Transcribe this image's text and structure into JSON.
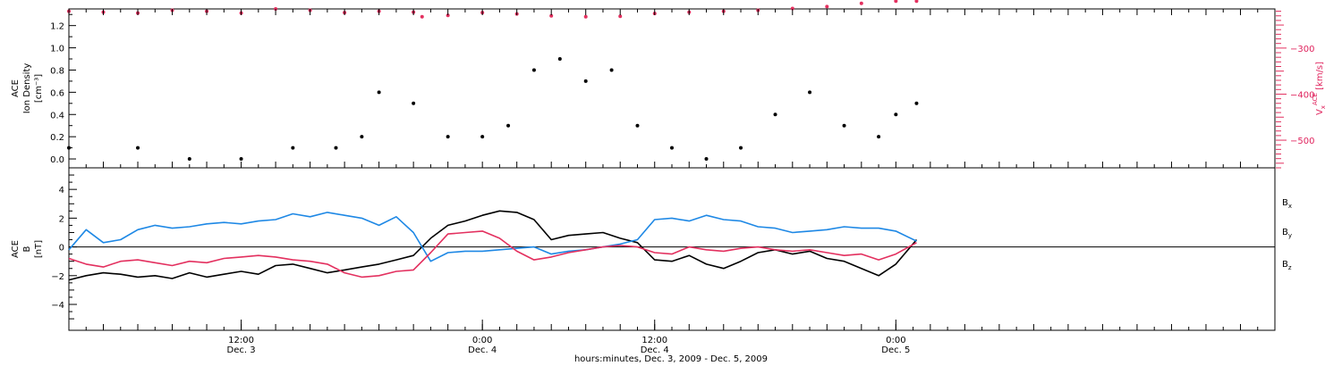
{
  "colors": {
    "black": "#000000",
    "pink": "#e3305f",
    "blue": "#1e88e5"
  },
  "x_axis": {
    "title": "hours:minutes, Dec.  3, 2009 - Dec.  5, 2009",
    "range_hours": [
      0,
      70
    ],
    "ticks": [
      {
        "hour": 10,
        "time": "12:00",
        "date": "Dec. 3"
      },
      {
        "hour": 24,
        "time": "0:00",
        "date": "Dec. 4"
      },
      {
        "hour": 34,
        "time": "12:00",
        "date": "Dec. 4"
      },
      {
        "hour": 48,
        "time": "0:00",
        "date": "Dec. 5"
      }
    ]
  },
  "chart_data": [
    {
      "type": "scatter",
      "panel": "top",
      "left_axis": {
        "label_lines": [
          "ACE",
          "Ion Density",
          "[cm⁻³]"
        ],
        "ylim": [
          -0.08,
          1.35
        ],
        "tick_labels": [
          "0.0",
          "0.2",
          "0.4",
          "0.6",
          "0.8",
          "1.0",
          "1.2"
        ]
      },
      "right_axis": {
        "label_parts": [
          "V",
          "x",
          "ACE",
          " [km/s]"
        ],
        "ylim": [
          -560,
          -215
        ],
        "tick_values": [
          -300,
          -400,
          -500
        ],
        "tick_labels": [
          "−300",
          "−400",
          "−500"
        ]
      },
      "series": [
        {
          "axis": "left",
          "color": "black",
          "x": [
            0,
            4,
            7,
            10,
            13,
            15.5,
            17,
            18,
            20,
            22,
            24,
            25.5,
            27,
            28.5,
            30,
            31.5,
            33,
            35,
            37,
            39,
            41,
            43,
            45,
            47,
            48,
            49.2
          ],
          "y": [
            0.1,
            0.1,
            0.0,
            0.0,
            0.1,
            0.1,
            0.2,
            0.6,
            0.5,
            0.2,
            0.2,
            0.3,
            0.8,
            0.9,
            0.7,
            0.8,
            0.3,
            0.1,
            0.0,
            0.1,
            0.4,
            0.6,
            0.3,
            0.2,
            0.4,
            0.5
          ]
        },
        {
          "axis": "right",
          "color": "pink",
          "x": [
            0,
            2,
            4,
            6,
            8,
            10,
            12,
            14,
            16,
            18,
            20,
            20.5,
            22,
            24,
            26,
            28,
            30,
            32,
            34,
            36,
            38,
            40,
            42,
            44,
            46,
            48,
            49.2
          ],
          "y": [
            -220,
            -222,
            -224,
            -218,
            -220,
            -224,
            -215,
            -218,
            -223,
            -220,
            -222,
            -232,
            -229,
            -223,
            -226,
            -230,
            -232,
            -231,
            -225,
            -222,
            -220,
            -218,
            -214,
            -210,
            -203,
            -198,
            -198
          ]
        }
      ]
    },
    {
      "type": "line",
      "panel": "bottom",
      "left_axis": {
        "label_lines": [
          "ACE",
          "B",
          "[nT]"
        ],
        "ylim": [
          -5.8,
          5.5
        ],
        "tick_values": [
          4,
          2,
          0,
          -2,
          -4
        ],
        "tick_labels": [
          "4",
          "2",
          "0",
          "−2",
          "−4"
        ]
      },
      "legend_position": "right",
      "series": [
        {
          "name_parts": [
            "B",
            "x"
          ],
          "color": "black",
          "x": [
            0,
            1,
            2,
            3,
            4,
            5,
            6,
            7,
            8,
            9,
            10,
            11,
            12,
            13,
            14,
            15,
            16,
            17,
            18,
            19,
            20,
            21,
            22,
            23,
            24,
            25,
            26,
            27,
            28,
            29,
            30,
            31,
            32,
            33,
            34,
            35,
            36,
            37,
            38,
            39,
            40,
            41,
            42,
            43,
            44,
            45,
            46,
            47,
            48,
            49.2
          ],
          "y": [
            -2.3,
            -2.0,
            -1.8,
            -1.9,
            -2.1,
            -2.0,
            -2.2,
            -1.8,
            -2.1,
            -1.9,
            -1.7,
            -1.9,
            -1.3,
            -1.2,
            -1.5,
            -1.8,
            -1.6,
            -1.4,
            -1.2,
            -0.9,
            -0.6,
            0.6,
            1.5,
            1.8,
            2.2,
            2.5,
            2.4,
            1.9,
            0.5,
            0.8,
            0.9,
            1.0,
            0.6,
            0.3,
            -0.9,
            -1.0,
            -0.6,
            -1.2,
            -1.5,
            -1.0,
            -0.4,
            -0.2,
            -0.5,
            -0.3,
            -0.8,
            -1.0,
            -1.5,
            -2.0,
            -1.2,
            0.5
          ]
        },
        {
          "name_parts": [
            "B",
            "y"
          ],
          "color": "blue",
          "x": [
            0,
            1,
            2,
            3,
            4,
            5,
            6,
            7,
            8,
            9,
            10,
            11,
            12,
            13,
            14,
            15,
            16,
            17,
            18,
            19,
            20,
            21,
            22,
            23,
            24,
            25,
            26,
            27,
            28,
            29,
            30,
            31,
            32,
            33,
            34,
            35,
            36,
            37,
            38,
            39,
            40,
            41,
            42,
            43,
            44,
            45,
            46,
            47,
            48,
            49.2
          ],
          "y": [
            -0.2,
            1.2,
            0.3,
            0.5,
            1.2,
            1.5,
            1.3,
            1.4,
            1.6,
            1.7,
            1.6,
            1.8,
            1.9,
            2.3,
            2.1,
            2.4,
            2.2,
            2.0,
            1.5,
            2.1,
            1.0,
            -1.0,
            -0.4,
            -0.3,
            -0.3,
            -0.2,
            -0.1,
            0.0,
            -0.5,
            -0.3,
            -0.2,
            0.0,
            0.2,
            0.5,
            1.9,
            2.0,
            1.8,
            2.2,
            1.9,
            1.8,
            1.4,
            1.3,
            1.0,
            1.1,
            1.2,
            1.4,
            1.3,
            1.3,
            1.1,
            0.4
          ]
        },
        {
          "name_parts": [
            "B",
            "z"
          ],
          "color": "pink",
          "x": [
            0,
            1,
            2,
            3,
            4,
            5,
            6,
            7,
            8,
            9,
            10,
            11,
            12,
            13,
            14,
            15,
            16,
            17,
            18,
            19,
            20,
            21,
            22,
            23,
            24,
            25,
            26,
            27,
            28,
            29,
            30,
            31,
            32,
            33,
            34,
            35,
            36,
            37,
            38,
            39,
            40,
            41,
            42,
            43,
            44,
            45,
            46,
            47,
            48,
            49.2
          ],
          "y": [
            -0.8,
            -1.2,
            -1.4,
            -1.0,
            -0.9,
            -1.1,
            -1.3,
            -1.0,
            -1.1,
            -0.8,
            -0.7,
            -0.6,
            -0.7,
            -0.9,
            -1.0,
            -1.2,
            -1.8,
            -2.1,
            -2.0,
            -1.7,
            -1.6,
            -0.4,
            0.9,
            1.0,
            1.1,
            0.6,
            -0.3,
            -0.9,
            -0.7,
            -0.4,
            -0.2,
            0.0,
            0.1,
            0.0,
            -0.4,
            -0.5,
            0.0,
            -0.2,
            -0.3,
            -0.1,
            0.0,
            -0.2,
            -0.3,
            -0.2,
            -0.4,
            -0.6,
            -0.5,
            -0.9,
            -0.5,
            0.3
          ]
        }
      ]
    }
  ]
}
